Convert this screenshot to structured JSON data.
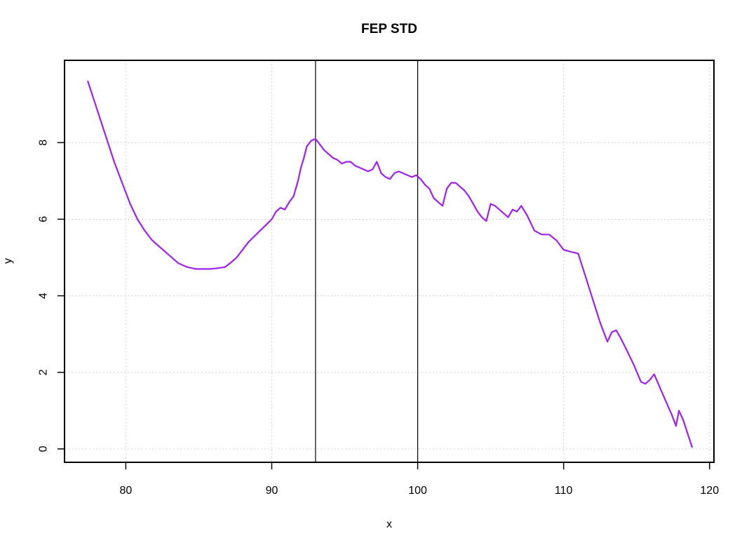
{
  "chart_data": {
    "type": "line",
    "title": "FEP STD",
    "xlabel": "x",
    "ylabel": "y",
    "xlim": [
      75.8,
      120.3
    ],
    "ylim": [
      -0.35,
      10.15
    ],
    "xticks": [
      80,
      90,
      100,
      110,
      120
    ],
    "yticks": [
      0,
      2,
      4,
      6,
      8
    ],
    "xtick_labels": [
      "80",
      "90",
      "100",
      "110",
      "120"
    ],
    "ytick_labels": [
      "0",
      "2",
      "4",
      "6",
      "8"
    ],
    "grid": true,
    "legend": "none",
    "vlines": [
      93,
      100
    ],
    "colors": {
      "series": "#a020f0",
      "vline": "#000000",
      "grid": "#d3d3d3",
      "axis": "#000000"
    },
    "series": [
      {
        "x": [
          77.4,
          78.0,
          78.6,
          79.2,
          79.8,
          80.3,
          80.8,
          81.3,
          81.8,
          82.4,
          83.0,
          83.6,
          84.2,
          84.8,
          85.3,
          85.8,
          86.3,
          86.8,
          87.3,
          87.6,
          88.0,
          88.4,
          88.8,
          89.2,
          89.6,
          90.0,
          90.3,
          90.6,
          90.9,
          91.2,
          91.5,
          91.8,
          92.0,
          92.2,
          92.4,
          92.7,
          93.0,
          93.3,
          93.6,
          93.9,
          94.2,
          94.5,
          94.8,
          95.1,
          95.4,
          95.7,
          96.0,
          96.3,
          96.6,
          96.9,
          97.2,
          97.5,
          97.8,
          98.1,
          98.4,
          98.7,
          99.0,
          99.3,
          99.6,
          99.9,
          100.2,
          100.5,
          100.8,
          101.1,
          101.4,
          101.7,
          102.0,
          102.3,
          102.6,
          102.9,
          103.2,
          103.5,
          103.8,
          104.1,
          104.4,
          104.7,
          105.0,
          105.3,
          105.6,
          105.9,
          106.2,
          106.5,
          106.8,
          107.1,
          107.5,
          108.0,
          108.5,
          109.0,
          109.5,
          110.0,
          110.5,
          111.0,
          111.5,
          112.0,
          112.5,
          113.0,
          113.3,
          113.6,
          113.9,
          114.3,
          114.8,
          115.3,
          115.6,
          115.9,
          116.2,
          116.6,
          117.0,
          117.4,
          117.7,
          117.9,
          118.2,
          118.5,
          118.8
        ],
        "y": [
          9.6,
          8.9,
          8.2,
          7.5,
          6.9,
          6.4,
          6.0,
          5.7,
          5.45,
          5.25,
          5.05,
          4.85,
          4.75,
          4.7,
          4.7,
          4.7,
          4.72,
          4.75,
          4.9,
          5.0,
          5.2,
          5.4,
          5.55,
          5.7,
          5.85,
          6.0,
          6.2,
          6.3,
          6.25,
          6.45,
          6.6,
          7.0,
          7.35,
          7.6,
          7.9,
          8.05,
          8.1,
          7.95,
          7.8,
          7.7,
          7.6,
          7.55,
          7.45,
          7.5,
          7.5,
          7.4,
          7.35,
          7.3,
          7.25,
          7.3,
          7.5,
          7.2,
          7.1,
          7.05,
          7.2,
          7.25,
          7.2,
          7.15,
          7.1,
          7.15,
          7.05,
          6.9,
          6.8,
          6.55,
          6.45,
          6.35,
          6.8,
          6.95,
          6.95,
          6.85,
          6.75,
          6.6,
          6.4,
          6.2,
          6.05,
          5.95,
          6.4,
          6.35,
          6.25,
          6.15,
          6.05,
          6.25,
          6.2,
          6.35,
          6.1,
          5.7,
          5.6,
          5.6,
          5.45,
          5.2,
          5.15,
          5.1,
          4.5,
          3.9,
          3.3,
          2.8,
          3.05,
          3.1,
          2.9,
          2.6,
          2.2,
          1.75,
          1.7,
          1.8,
          1.95,
          1.6,
          1.25,
          0.9,
          0.6,
          1.0,
          0.75,
          0.4,
          0.05
        ]
      }
    ]
  }
}
